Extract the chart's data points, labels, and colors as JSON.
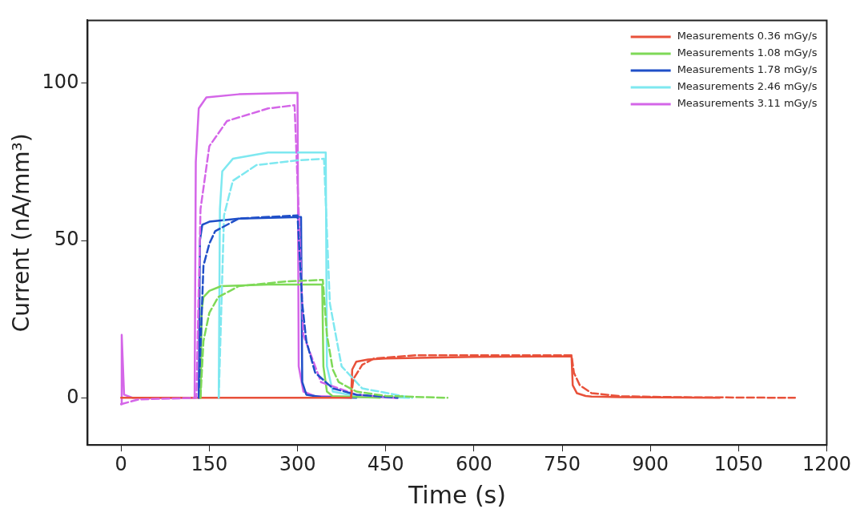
{
  "chart_data": {
    "type": "line",
    "xlabel": "Time (s)",
    "ylabel": "Current (nA/mm³)",
    "xlim": [
      -57,
      1200
    ],
    "ylim": [
      -15,
      120
    ],
    "xticks": [
      0,
      150,
      300,
      450,
      600,
      750,
      900,
      1050,
      1200
    ],
    "yticks": [
      0,
      50,
      100
    ],
    "grid": false,
    "legend": "top right",
    "marker": "none",
    "series": [
      {
        "name": "Measurements 0.36 mGy/s",
        "color": "#e8513a",
        "line_style": "solid",
        "x": [
          0,
          391,
          393,
          400,
          420,
          450,
          600,
          766,
          768,
          775,
          790,
          800,
          850,
          1018
        ],
        "values": [
          0,
          0,
          9,
          11.5,
          12.2,
          12.5,
          13,
          13.2,
          4,
          1.5,
          0.6,
          0.4,
          0.2,
          0
        ]
      },
      {
        "name": "Measurements 1.08 mGy/s",
        "color": "#7ed957",
        "line_style": "solid",
        "x": [
          135,
          137,
          140,
          150,
          170,
          250,
          342,
          344,
          350,
          360,
          440
        ],
        "values": [
          0,
          28,
          32,
          34,
          35.5,
          36,
          36,
          10,
          2,
          0.5,
          0
        ]
      },
      {
        "name": "Measurements 1.78 mGy/s",
        "color": "#1f4fc8",
        "line_style": "solid",
        "x": [
          132,
          134,
          138,
          150,
          200,
          306,
          308,
          315,
          340,
          400
        ],
        "values": [
          0,
          50,
          55,
          56,
          57,
          57.5,
          5,
          1,
          0.3,
          0
        ]
      },
      {
        "name": "Measurements 2.46 mGy/s",
        "color": "#7ee8f0",
        "line_style": "solid",
        "x": [
          166,
          168,
          172,
          190,
          250,
          348,
          350,
          360,
          400,
          490
        ],
        "values": [
          0,
          60,
          72,
          76,
          78,
          78,
          10,
          2,
          0.5,
          0
        ]
      },
      {
        "name": "Measurements 3.11 mGy/s",
        "color": "#d466e8",
        "line_style": "solid",
        "x": [
          0,
          1,
          5,
          20,
          125,
          127,
          132,
          145,
          200,
          300,
          302,
          310,
          330,
          470
        ],
        "values": [
          -2,
          20,
          1,
          0,
          0,
          75,
          92,
          95.5,
          96.5,
          97,
          10,
          2,
          0.5,
          0
        ]
      },
      {
        "color": "#e8513a",
        "line_style": "dashed",
        "x": [
          391,
          395,
          410,
          430,
          500,
          766,
          770,
          780,
          800,
          850,
          950,
          1146
        ],
        "values": [
          0,
          6,
          10.5,
          12.5,
          13.5,
          13.5,
          8,
          4,
          1.5,
          0.5,
          0.2,
          0
        ]
      },
      {
        "color": "#7ed957",
        "line_style": "dashed",
        "x": [
          135,
          140,
          150,
          165,
          200,
          280,
          343,
          350,
          360,
          370,
          400,
          450,
          555
        ],
        "values": [
          0,
          18,
          27,
          32,
          35.5,
          37,
          37.5,
          20,
          9,
          5,
          2,
          0.6,
          0
        ]
      },
      {
        "color": "#1f4fc8",
        "line_style": "dashed",
        "x": [
          132,
          140,
          150,
          160,
          200,
          300,
          308,
          315,
          330,
          360,
          400,
          470
        ],
        "values": [
          0,
          42,
          49,
          53,
          57,
          58,
          30,
          18,
          8,
          3,
          1,
          0
        ]
      },
      {
        "color": "#7ee8f0",
        "line_style": "dashed",
        "x": [
          166,
          175,
          190,
          230,
          300,
          345,
          355,
          375,
          410,
          495
        ],
        "values": [
          0,
          58,
          69,
          74,
          75.5,
          76,
          30,
          10,
          3,
          0
        ]
      },
      {
        "color": "#d466e8",
        "line_style": "dashed",
        "x": [
          0,
          30,
          128,
          135,
          150,
          180,
          250,
          295,
          310,
          340,
          400,
          470
        ],
        "values": [
          -2,
          -0.5,
          0,
          60,
          80,
          88,
          92,
          93,
          20,
          5,
          1,
          0
        ]
      }
    ]
  }
}
